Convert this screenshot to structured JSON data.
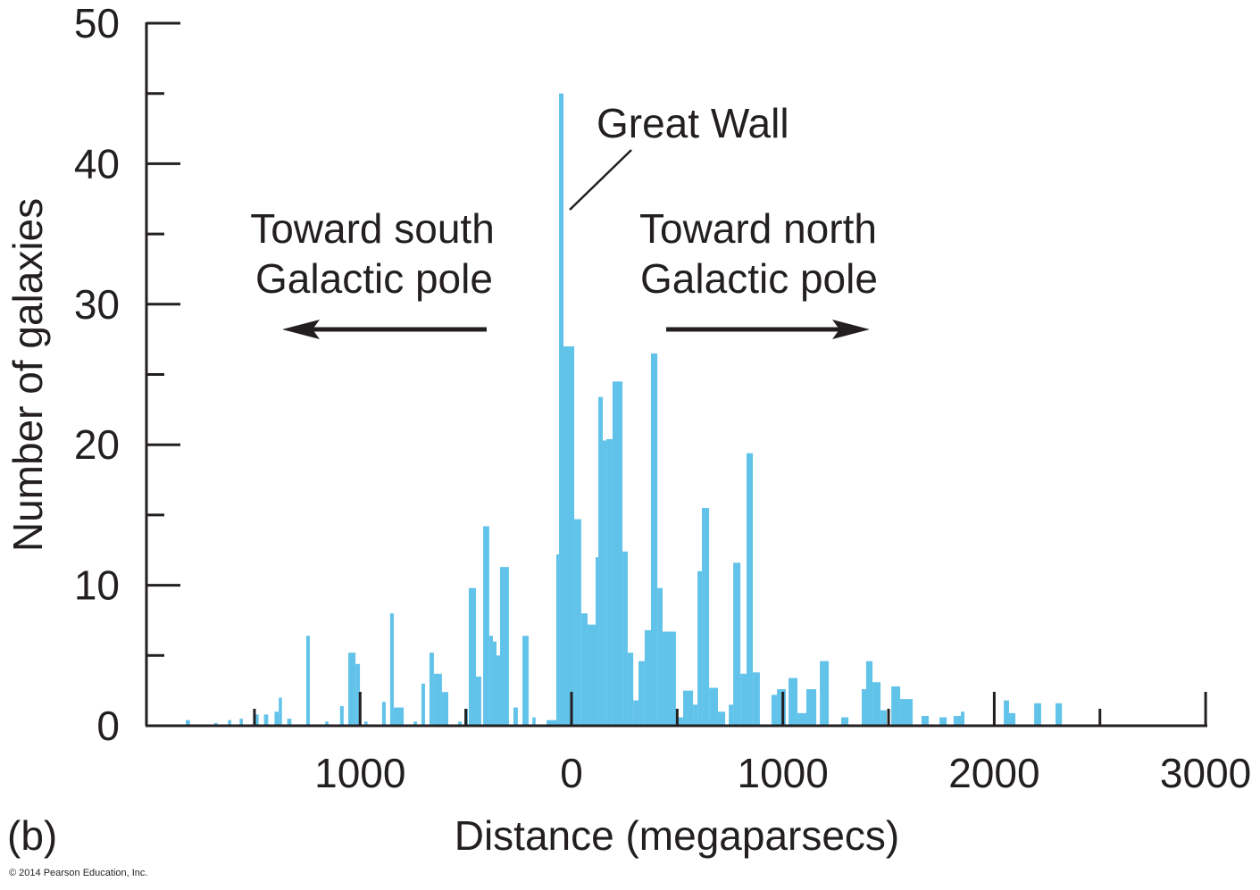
{
  "chart_data": {
    "type": "bar",
    "title": "",
    "panel_label": "(b)",
    "xlabel": "Distance (megaparsecs)",
    "ylabel": "Number of galaxies",
    "xlim": [
      -2015,
      3000
    ],
    "ylim": [
      0,
      50
    ],
    "grid": false,
    "bar_color": "#62c3ea",
    "y_major_ticks": [
      0,
      10,
      20,
      30,
      40,
      50
    ],
    "y_tick_labels": [
      "0",
      "10",
      "20",
      "30",
      "40",
      "50"
    ],
    "y_minor_ticks": [
      5,
      15,
      25,
      35,
      45
    ],
    "x_major_ticks": [
      -1000,
      0,
      1000,
      2000,
      3000
    ],
    "x_tick_labels": [
      "1000",
      "0",
      "1000",
      "2000",
      "3000"
    ],
    "x_minor_ticks": [
      -1500,
      -500,
      500,
      1500,
      2500
    ],
    "bins_columns": [
      "start",
      "end",
      "count"
    ],
    "bins": [
      [
        -1825,
        -1805,
        0.4
      ],
      [
        -1690,
        -1675,
        0.2
      ],
      [
        -1625,
        -1610,
        0.4
      ],
      [
        -1570,
        -1555,
        0.5
      ],
      [
        -1495,
        -1480,
        0.8
      ],
      [
        -1455,
        -1435,
        0.8
      ],
      [
        -1405,
        -1385,
        1.0
      ],
      [
        -1385,
        -1370,
        2.0
      ],
      [
        -1345,
        -1325,
        0.5
      ],
      [
        -1255,
        -1238,
        6.4
      ],
      [
        -1165,
        -1150,
        0.3
      ],
      [
        -1095,
        -1078,
        1.4
      ],
      [
        -1056,
        -1022,
        5.2
      ],
      [
        -1022,
        -1001,
        4.4
      ],
      [
        -980,
        -965,
        0.3
      ],
      [
        -896,
        -879,
        1.7
      ],
      [
        -858,
        -841,
        8.0
      ],
      [
        -841,
        -794,
        1.3
      ],
      [
        -747,
        -731,
        0.3
      ],
      [
        -710,
        -693,
        3.0
      ],
      [
        -672,
        -651,
        5.2
      ],
      [
        -651,
        -613,
        3.7
      ],
      [
        -613,
        -583,
        2.4
      ],
      [
        -536,
        -520,
        0.3
      ],
      [
        -507,
        -490,
        1.2
      ],
      [
        -486,
        -452,
        9.8
      ],
      [
        -452,
        -427,
        3.5
      ],
      [
        -418,
        -389,
        14.2
      ],
      [
        -389,
        -372,
        6.4
      ],
      [
        -372,
        -355,
        6.0
      ],
      [
        -355,
        -338,
        5.0
      ],
      [
        -338,
        -296,
        11.3
      ],
      [
        -275,
        -254,
        1.3
      ],
      [
        -232,
        -203,
        6.4
      ],
      [
        -185,
        -170,
        0.6
      ],
      [
        -118,
        -72,
        0.4
      ],
      [
        -72,
        -59,
        12.2
      ],
      [
        -59,
        -38,
        45
      ],
      [
        -38,
        13,
        27
      ],
      [
        13,
        46,
        14.7
      ],
      [
        46,
        76,
        8.0
      ],
      [
        76,
        114,
        7.2
      ],
      [
        114,
        127,
        12
      ],
      [
        127,
        148,
        23.4
      ],
      [
        148,
        165,
        20.3
      ],
      [
        165,
        194,
        20.4
      ],
      [
        194,
        241,
        24.5
      ],
      [
        241,
        266,
        12.4
      ],
      [
        266,
        292,
        5.2
      ],
      [
        292,
        317,
        1.8
      ],
      [
        317,
        346,
        4.6
      ],
      [
        346,
        376,
        6.8
      ],
      [
        376,
        406,
        26.5
      ],
      [
        406,
        431,
        9.8
      ],
      [
        431,
        494,
        6.7
      ],
      [
        494,
        528,
        0.6
      ],
      [
        528,
        575,
        2.5
      ],
      [
        575,
        596,
        1.5
      ],
      [
        596,
        617,
        11
      ],
      [
        617,
        651,
        15.5
      ],
      [
        651,
        693,
        2.7
      ],
      [
        693,
        727,
        1.0
      ],
      [
        744,
        765,
        1.5
      ],
      [
        765,
        799,
        11.6
      ],
      [
        799,
        828,
        3.7
      ],
      [
        828,
        858,
        19.4
      ],
      [
        858,
        891,
        3.8
      ],
      [
        946,
        972,
        2.2
      ],
      [
        972,
        1014,
        2.6
      ],
      [
        1027,
        1069,
        3.4
      ],
      [
        1069,
        1111,
        0.9
      ],
      [
        1111,
        1158,
        2.6
      ],
      [
        1175,
        1217,
        4.6
      ],
      [
        1276,
        1310,
        0.6
      ],
      [
        1373,
        1394,
        2.6
      ],
      [
        1394,
        1424,
        4.6
      ],
      [
        1424,
        1462,
        3.1
      ],
      [
        1462,
        1491,
        1.1
      ],
      [
        1513,
        1555,
        2.8
      ],
      [
        1555,
        1614,
        1.9
      ],
      [
        1656,
        1690,
        0.7
      ],
      [
        1741,
        1775,
        0.6
      ],
      [
        1808,
        1842,
        0.7
      ],
      [
        1842,
        1859,
        1.0
      ],
      [
        2045,
        2070,
        1.8
      ],
      [
        2070,
        2100,
        0.9
      ],
      [
        2189,
        2222,
        1.6
      ],
      [
        2290,
        2320,
        1.6
      ]
    ],
    "annotations": {
      "great_wall": "Great Wall",
      "south_line1": "Toward south",
      "south_line2": "Galactic pole",
      "north_line1": "Toward north",
      "north_line2": "Galactic pole"
    }
  },
  "copyright": "© 2014 Pearson Education, Inc."
}
